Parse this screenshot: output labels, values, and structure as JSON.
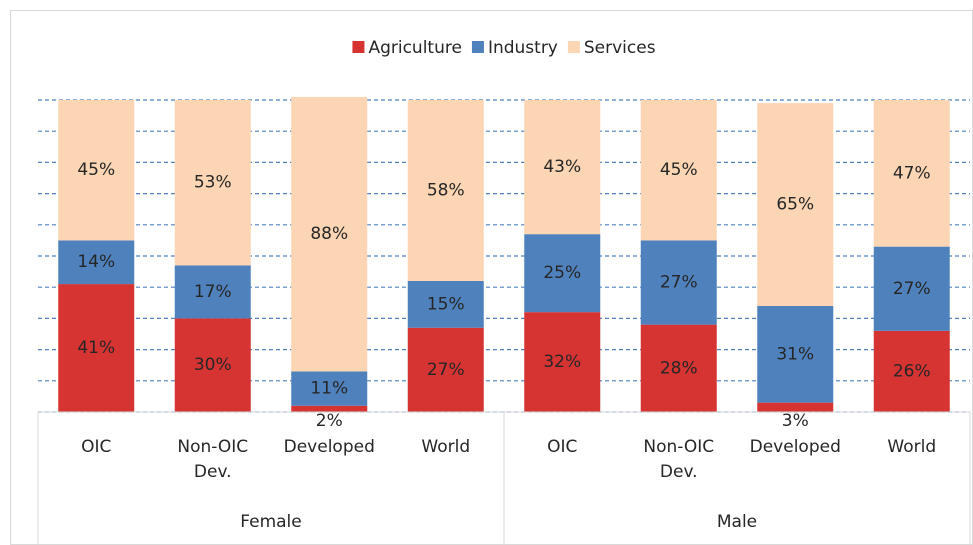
{
  "chart_data": {
    "type": "stacked-bar",
    "categories": [
      "OIC",
      "Non-OIC Dev.",
      "Developed",
      "World",
      "OIC",
      "Non-OIC Dev.",
      "Developed",
      "World"
    ],
    "groups": [
      {
        "name": "Female",
        "size": 4
      },
      {
        "name": "Male",
        "size": 4
      }
    ],
    "series": [
      {
        "name": "Agriculture",
        "color": "#d63333",
        "values": [
          41,
          30,
          2,
          27,
          32,
          28,
          3,
          26
        ],
        "value_labels": [
          "41%",
          "30%",
          "2%",
          "27%",
          "32%",
          "28%",
          "3%",
          "26%"
        ]
      },
      {
        "name": "Industry",
        "color": "#4f81bd",
        "values": [
          14,
          17,
          11,
          15,
          25,
          27,
          31,
          27
        ],
        "value_labels": [
          "14%",
          "17%",
          "11%",
          "15%",
          "25%",
          "27%",
          "31%",
          "27%"
        ]
      },
      {
        "name": "Services",
        "color": "#fcd5b4",
        "values": [
          45,
          53,
          88,
          58,
          43,
          45,
          65,
          47
        ],
        "value_labels": [
          "45%",
          "53%",
          "88%",
          "58%",
          "43%",
          "45%",
          "65%",
          "47%"
        ]
      }
    ],
    "ylim": [
      0,
      100
    ],
    "yticks": [
      0,
      10,
      20,
      30,
      40,
      50,
      60,
      70,
      80,
      90,
      100
    ],
    "grid": true,
    "legend": "top"
  }
}
